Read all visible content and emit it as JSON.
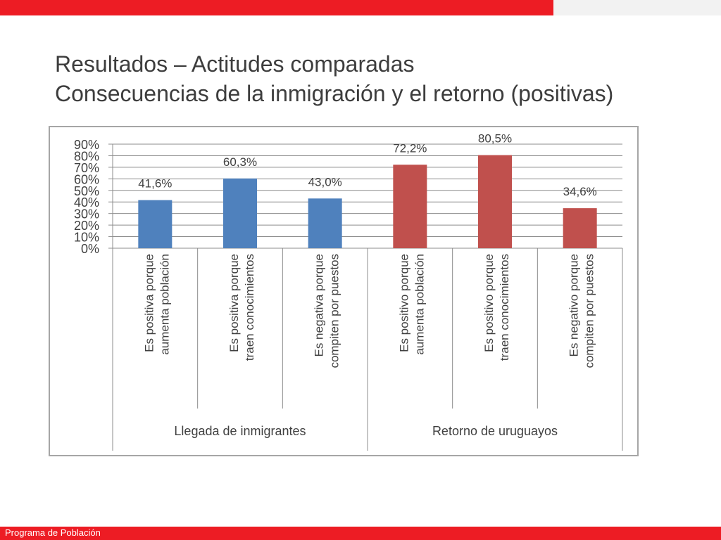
{
  "slide": {
    "title_line1": "Resultados – Actitudes comparadas",
    "title_line2": "Consecuencias de la inmigración y el retorno (positivas)",
    "footer_text": "Programa de Población"
  },
  "colors": {
    "accent_red": "#ed1c24",
    "series_blue": "#4f81bd",
    "series_red": "#c0504d"
  },
  "chart_data": {
    "type": "bar",
    "title": "",
    "xlabel": "",
    "ylabel": "",
    "ylim": [
      0,
      90
    ],
    "yticks": [
      "0%",
      "10%",
      "20%",
      "30%",
      "40%",
      "50%",
      "60%",
      "70%",
      "80%",
      "90%"
    ],
    "grid": true,
    "categories": [
      [
        "Es positiva porque",
        "aumenta población"
      ],
      [
        "Es positiva porque",
        "traen conocimientos"
      ],
      [
        "Es negativa porque",
        "compiten por puestos"
      ],
      [
        "Es positivo porque",
        "aumenta población"
      ],
      [
        "Es positivo porque",
        "traen conocimientos"
      ],
      [
        "Es negativo porque",
        "compiten por puestos"
      ]
    ],
    "values": [
      41.6,
      60.3,
      43.0,
      72.2,
      80.5,
      34.6
    ],
    "value_labels": [
      "41,6%",
      "60,3%",
      "43,0%",
      "72,2%",
      "80,5%",
      "34,6%"
    ],
    "bar_colors": [
      "#4f81bd",
      "#4f81bd",
      "#4f81bd",
      "#c0504d",
      "#c0504d",
      "#c0504d"
    ],
    "groups": [
      {
        "label": "Llegada de inmigrantes",
        "count": 3
      },
      {
        "label": "Retorno de uruguayos",
        "count": 3
      }
    ]
  }
}
